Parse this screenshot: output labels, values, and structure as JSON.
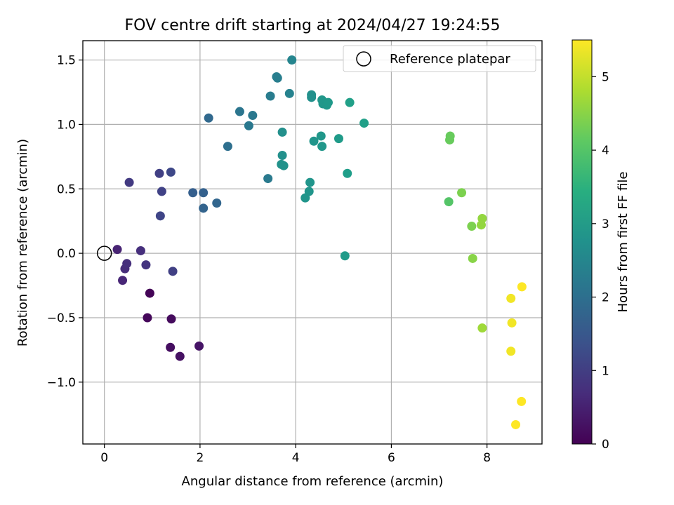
{
  "chart_data": {
    "type": "scatter",
    "title": "FOV centre drift starting at 2024/04/27 19:24:55",
    "xlabel": "Angular distance from reference (arcmin)",
    "ylabel": "Rotation from reference (arcmin)",
    "xlim": [
      -0.45,
      9.15
    ],
    "ylim": [
      -1.48,
      1.65
    ],
    "xticks": [
      0,
      2,
      4,
      6,
      8
    ],
    "xtick_labels": [
      "0",
      "2",
      "4",
      "6",
      "8"
    ],
    "yticks": [
      -1.0,
      -0.5,
      0.0,
      0.5,
      1.0,
      1.5
    ],
    "ytick_labels": [
      "−1.0",
      "−0.5",
      "0.0",
      "0.5",
      "1.0",
      "1.5"
    ],
    "grid": true,
    "legend": {
      "placement": "top-right",
      "entries": [
        "Reference platepar"
      ]
    },
    "reference_point": {
      "x": 0,
      "y": 0
    },
    "colorbar": {
      "label": "Hours from first FF file",
      "colormap": "viridis",
      "range": [
        0,
        5.5
      ],
      "ticks": [
        0,
        1,
        2,
        3,
        4,
        5
      ],
      "tick_labels": [
        "0",
        "1",
        "2",
        "3",
        "4",
        "5"
      ]
    },
    "points": [
      {
        "x": 0.95,
        "y": -0.31,
        "c": 0.05
      },
      {
        "x": 0.9,
        "y": -0.5,
        "c": 0.1
      },
      {
        "x": 1.4,
        "y": -0.51,
        "c": 0.15
      },
      {
        "x": 1.38,
        "y": -0.73,
        "c": 0.2
      },
      {
        "x": 1.58,
        "y": -0.8,
        "c": 0.25
      },
      {
        "x": 1.98,
        "y": -0.72,
        "c": 0.3
      },
      {
        "x": 0.27,
        "y": 0.03,
        "c": 0.55
      },
      {
        "x": 0.38,
        "y": -0.21,
        "c": 0.6
      },
      {
        "x": 0.43,
        "y": -0.12,
        "c": 0.7
      },
      {
        "x": 0.47,
        "y": -0.08,
        "c": 0.75
      },
      {
        "x": 0.76,
        "y": 0.02,
        "c": 0.75
      },
      {
        "x": 0.87,
        "y": -0.09,
        "c": 0.85
      },
      {
        "x": 0.52,
        "y": 0.55,
        "c": 0.95
      },
      {
        "x": 1.43,
        "y": -0.14,
        "c": 1.05
      },
      {
        "x": 1.15,
        "y": 0.62,
        "c": 1.05
      },
      {
        "x": 1.2,
        "y": 0.48,
        "c": 1.1
      },
      {
        "x": 1.17,
        "y": 0.29,
        "c": 1.15
      },
      {
        "x": 1.39,
        "y": 0.63,
        "c": 1.2
      },
      {
        "x": 1.85,
        "y": 0.47,
        "c": 1.65
      },
      {
        "x": 2.07,
        "y": 0.47,
        "c": 1.7
      },
      {
        "x": 2.07,
        "y": 0.35,
        "c": 1.75
      },
      {
        "x": 2.35,
        "y": 0.39,
        "c": 1.8
      },
      {
        "x": 2.18,
        "y": 1.05,
        "c": 1.85
      },
      {
        "x": 2.58,
        "y": 0.83,
        "c": 2.0
      },
      {
        "x": 2.83,
        "y": 1.1,
        "c": 2.15
      },
      {
        "x": 3.02,
        "y": 0.99,
        "c": 2.2
      },
      {
        "x": 3.1,
        "y": 1.07,
        "c": 2.2
      },
      {
        "x": 3.42,
        "y": 0.58,
        "c": 2.25
      },
      {
        "x": 3.47,
        "y": 1.22,
        "c": 2.3
      },
      {
        "x": 3.6,
        "y": 1.37,
        "c": 2.35
      },
      {
        "x": 3.62,
        "y": 1.36,
        "c": 2.35
      },
      {
        "x": 3.87,
        "y": 1.24,
        "c": 2.45
      },
      {
        "x": 3.92,
        "y": 1.5,
        "c": 2.5
      },
      {
        "x": 3.72,
        "y": 0.94,
        "c": 2.75
      },
      {
        "x": 3.72,
        "y": 0.76,
        "c": 2.75
      },
      {
        "x": 3.7,
        "y": 0.69,
        "c": 2.8
      },
      {
        "x": 3.75,
        "y": 0.68,
        "c": 2.8
      },
      {
        "x": 4.33,
        "y": 1.23,
        "c": 2.75
      },
      {
        "x": 4.33,
        "y": 1.21,
        "c": 2.75
      },
      {
        "x": 4.3,
        "y": 0.55,
        "c": 2.85
      },
      {
        "x": 4.2,
        "y": 0.43,
        "c": 2.85
      },
      {
        "x": 4.28,
        "y": 0.48,
        "c": 2.85
      },
      {
        "x": 4.38,
        "y": 0.87,
        "c": 2.85
      },
      {
        "x": 4.53,
        "y": 0.91,
        "c": 2.9
      },
      {
        "x": 4.55,
        "y": 0.83,
        "c": 2.9
      },
      {
        "x": 4.55,
        "y": 1.19,
        "c": 2.9
      },
      {
        "x": 4.57,
        "y": 1.16,
        "c": 2.9
      },
      {
        "x": 4.65,
        "y": 1.15,
        "c": 2.9
      },
      {
        "x": 4.68,
        "y": 1.17,
        "c": 2.95
      },
      {
        "x": 4.9,
        "y": 0.89,
        "c": 3.0
      },
      {
        "x": 5.03,
        "y": -0.02,
        "c": 3.0
      },
      {
        "x": 5.08,
        "y": 0.62,
        "c": 3.05
      },
      {
        "x": 5.13,
        "y": 1.17,
        "c": 3.1
      },
      {
        "x": 5.43,
        "y": 1.01,
        "c": 3.1
      },
      {
        "x": 7.2,
        "y": 0.4,
        "c": 4.0
      },
      {
        "x": 7.22,
        "y": 0.88,
        "c": 4.2
      },
      {
        "x": 7.23,
        "y": 0.91,
        "c": 4.2
      },
      {
        "x": 7.47,
        "y": 0.47,
        "c": 4.4
      },
      {
        "x": 7.68,
        "y": 0.21,
        "c": 4.4
      },
      {
        "x": 7.7,
        "y": -0.04,
        "c": 4.5
      },
      {
        "x": 7.88,
        "y": 0.22,
        "c": 4.6
      },
      {
        "x": 7.9,
        "y": 0.27,
        "c": 4.6
      },
      {
        "x": 7.9,
        "y": -0.58,
        "c": 4.7
      },
      {
        "x": 8.5,
        "y": -0.35,
        "c": 5.4
      },
      {
        "x": 8.52,
        "y": -0.54,
        "c": 5.4
      },
      {
        "x": 8.5,
        "y": -0.76,
        "c": 5.4
      },
      {
        "x": 8.73,
        "y": -0.26,
        "c": 5.5
      },
      {
        "x": 8.72,
        "y": -1.15,
        "c": 5.5
      },
      {
        "x": 8.6,
        "y": -1.33,
        "c": 5.5
      }
    ]
  }
}
